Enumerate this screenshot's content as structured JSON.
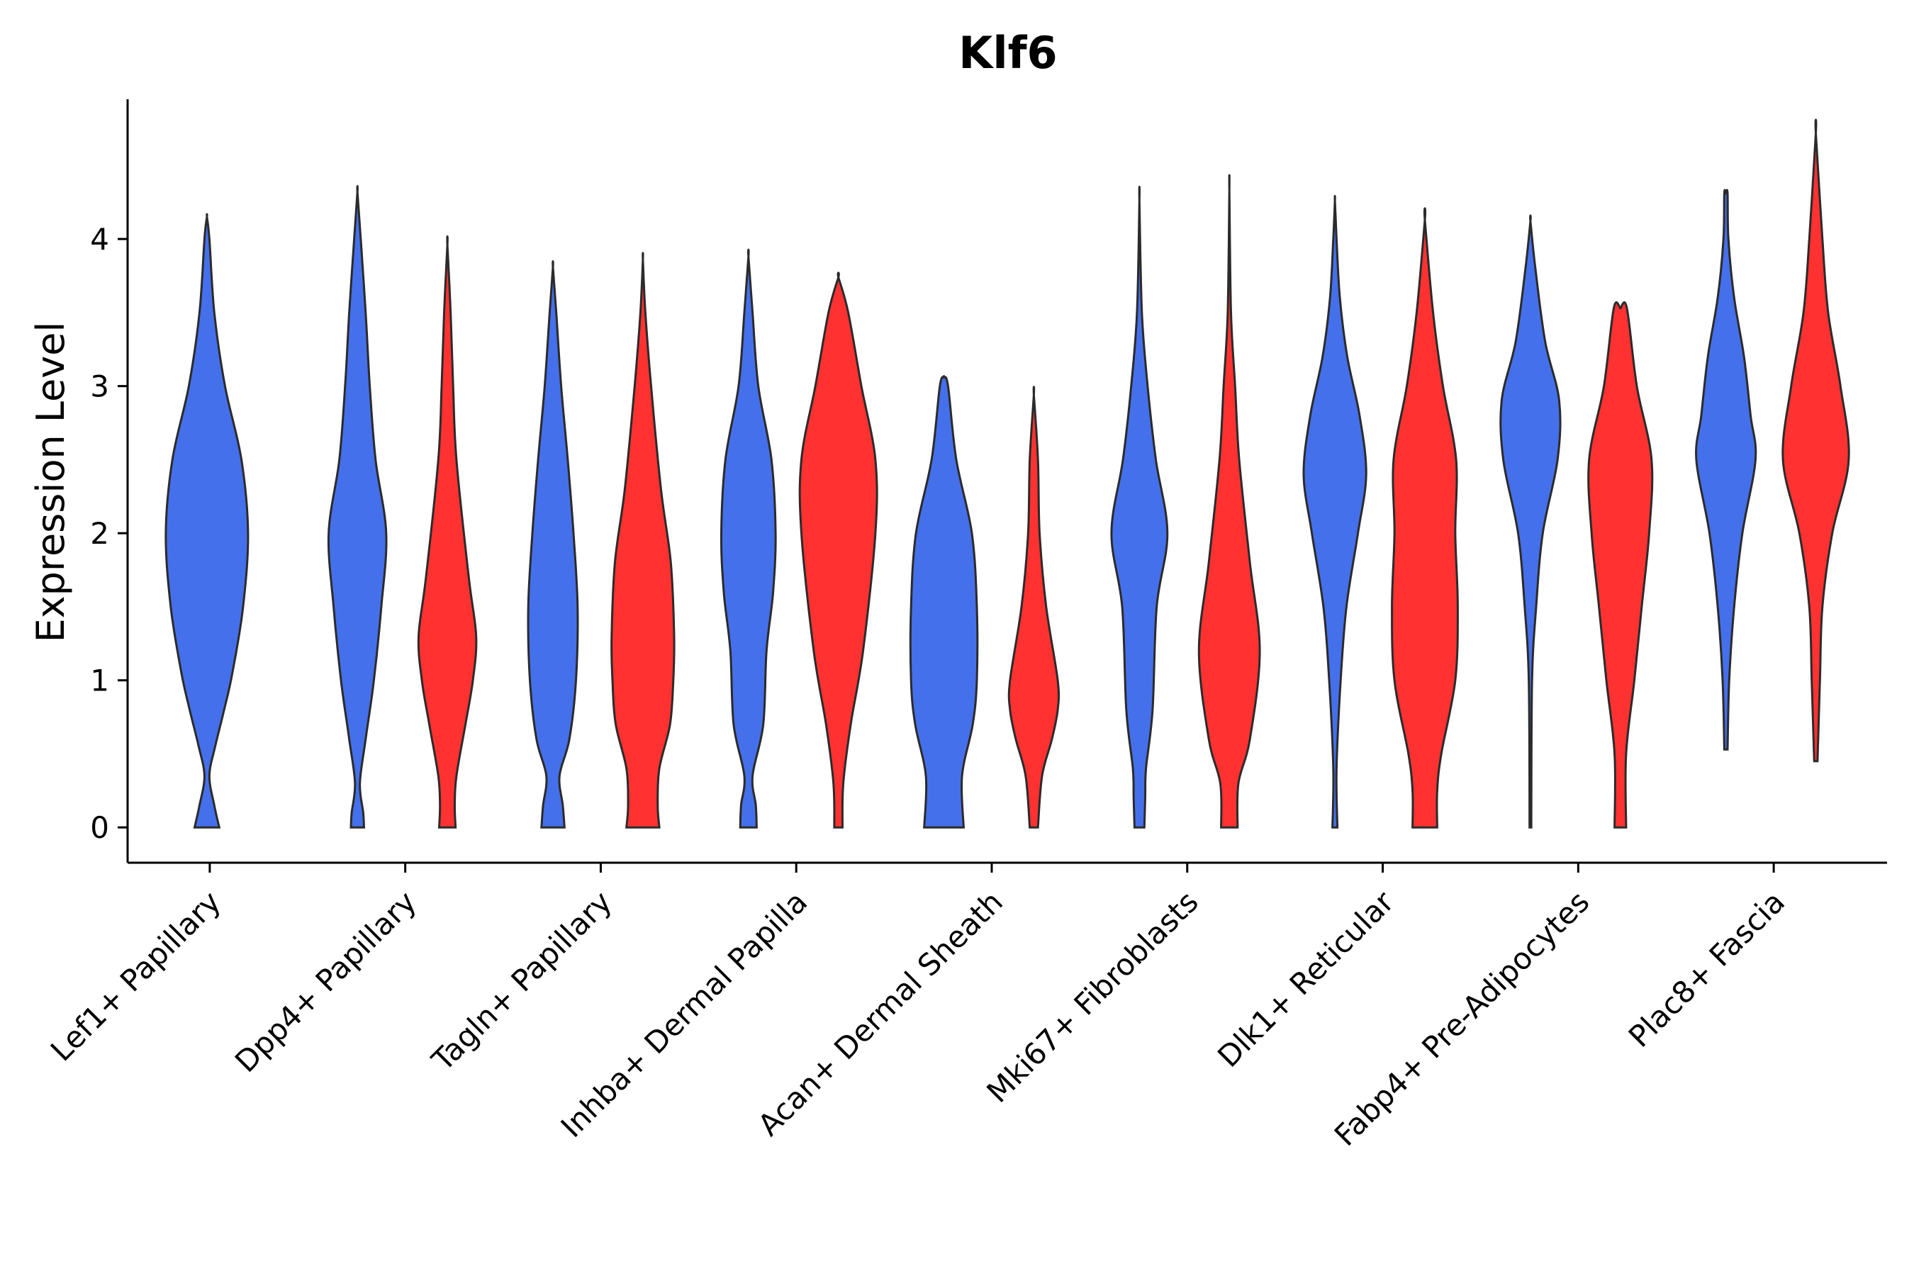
{
  "chart_data": {
    "type": "violin",
    "title": "Klf6",
    "xlabel": "",
    "ylabel": "Expression Level",
    "ylim": [
      -0.24,
      4.95
    ],
    "yticks": [
      0,
      1,
      2,
      3,
      4
    ],
    "grid": false,
    "legend": "none",
    "categories": [
      "Lef1+ Papillary",
      "Dpp4+ Papillary",
      "Tagln+ Papillary",
      "Inhba+ Dermal Papilla",
      "Acan+ Dermal Sheath",
      "Mki67+ Fibroblasts",
      "Dlk1+ Reticular",
      "Fabp4+ Pre-Adipocytes",
      "Plac8+ Fascia"
    ],
    "colors": {
      "blue": "#4570eb",
      "red": "#ff3131"
    },
    "violins": [
      {
        "category": 0,
        "color": "blue",
        "offset": 0.0,
        "profile": [
          [
            0,
            0.15
          ],
          [
            0.15,
            0.09
          ],
          [
            0.35,
            0.03
          ],
          [
            0.55,
            0.1
          ],
          [
            0.8,
            0.21
          ],
          [
            1.05,
            0.31
          ],
          [
            1.5,
            0.44
          ],
          [
            2.0,
            0.5
          ],
          [
            2.5,
            0.42
          ],
          [
            3.0,
            0.22
          ],
          [
            3.5,
            0.09
          ],
          [
            4.0,
            0.03
          ],
          [
            4.15,
            0
          ]
        ]
      },
      {
        "category": 1,
        "color": "blue",
        "offset": -0.23,
        "profile": [
          [
            0,
            0.08
          ],
          [
            0.1,
            0.07
          ],
          [
            0.3,
            0.03
          ],
          [
            0.6,
            0.1
          ],
          [
            1.0,
            0.2
          ],
          [
            1.5,
            0.29
          ],
          [
            2.0,
            0.35
          ],
          [
            2.5,
            0.22
          ],
          [
            3.0,
            0.15
          ],
          [
            3.5,
            0.1
          ],
          [
            4.0,
            0.04
          ],
          [
            4.32,
            0
          ]
        ]
      },
      {
        "category": 1,
        "color": "red",
        "offset": 0.23,
        "profile": [
          [
            0,
            0.1
          ],
          [
            0.15,
            0.09
          ],
          [
            0.35,
            0.11
          ],
          [
            0.7,
            0.22
          ],
          [
            1.0,
            0.31
          ],
          [
            1.3,
            0.35
          ],
          [
            1.7,
            0.26
          ],
          [
            2.5,
            0.11
          ],
          [
            3.0,
            0.07
          ],
          [
            3.5,
            0.04
          ],
          [
            3.96,
            0
          ]
        ]
      },
      {
        "category": 2,
        "color": "blue",
        "offset": -0.23,
        "profile": [
          [
            0,
            0.14
          ],
          [
            0.15,
            0.12
          ],
          [
            0.35,
            0.08
          ],
          [
            0.6,
            0.2
          ],
          [
            1.0,
            0.28
          ],
          [
            1.5,
            0.3
          ],
          [
            2.0,
            0.25
          ],
          [
            2.5,
            0.18
          ],
          [
            3.0,
            0.1
          ],
          [
            3.5,
            0.04
          ],
          [
            3.81,
            0
          ]
        ]
      },
      {
        "category": 2,
        "color": "red",
        "offset": 0.23,
        "profile": [
          [
            0,
            0.2
          ],
          [
            0.15,
            0.18
          ],
          [
            0.4,
            0.2
          ],
          [
            0.7,
            0.33
          ],
          [
            1.0,
            0.37
          ],
          [
            1.3,
            0.38
          ],
          [
            1.8,
            0.34
          ],
          [
            2.3,
            0.22
          ],
          [
            3.0,
            0.1
          ],
          [
            3.5,
            0.03
          ],
          [
            3.86,
            0
          ]
        ]
      },
      {
        "category": 3,
        "color": "blue",
        "offset": -0.23,
        "profile": [
          [
            0,
            0.1
          ],
          [
            0.15,
            0.09
          ],
          [
            0.35,
            0.05
          ],
          [
            0.7,
            0.18
          ],
          [
            1.2,
            0.22
          ],
          [
            1.6,
            0.3
          ],
          [
            2.0,
            0.33
          ],
          [
            2.5,
            0.28
          ],
          [
            3.0,
            0.12
          ],
          [
            3.5,
            0.05
          ],
          [
            3.88,
            0
          ]
        ]
      },
      {
        "category": 3,
        "color": "red",
        "offset": 0.23,
        "profile": [
          [
            0,
            0.05
          ],
          [
            0.3,
            0.06
          ],
          [
            0.7,
            0.15
          ],
          [
            1.2,
            0.3
          ],
          [
            2.0,
            0.45
          ],
          [
            2.5,
            0.45
          ],
          [
            3.0,
            0.28
          ],
          [
            3.5,
            0.12
          ],
          [
            3.74,
            0
          ]
        ]
      },
      {
        "category": 4,
        "color": "blue",
        "offset": -0.23,
        "profile": [
          [
            0,
            0.24
          ],
          [
            0.35,
            0.22
          ],
          [
            0.7,
            0.35
          ],
          [
            1.0,
            0.4
          ],
          [
            1.5,
            0.4
          ],
          [
            2.0,
            0.34
          ],
          [
            2.5,
            0.15
          ],
          [
            3.0,
            0.05
          ],
          [
            3.06,
            0
          ]
        ]
      },
      {
        "category": 4,
        "color": "red",
        "offset": 0.23,
        "profile": [
          [
            0,
            0.05
          ],
          [
            0.35,
            0.1
          ],
          [
            0.6,
            0.22
          ],
          [
            0.8,
            0.29
          ],
          [
            1.0,
            0.29
          ],
          [
            1.5,
            0.15
          ],
          [
            2.0,
            0.07
          ],
          [
            2.5,
            0.05
          ],
          [
            2.94,
            0
          ]
        ]
      },
      {
        "category": 5,
        "color": "blue",
        "offset": -0.23,
        "profile": [
          [
            0,
            0.06
          ],
          [
            0.2,
            0.07
          ],
          [
            0.4,
            0.08
          ],
          [
            0.8,
            0.16
          ],
          [
            1.5,
            0.21
          ],
          [
            2.0,
            0.34
          ],
          [
            2.5,
            0.2
          ],
          [
            3.0,
            0.1
          ],
          [
            3.5,
            0.03
          ],
          [
            4.26,
            0
          ]
        ]
      },
      {
        "category": 5,
        "color": "red",
        "offset": 0.23,
        "profile": [
          [
            0,
            0.1
          ],
          [
            0.3,
            0.11
          ],
          [
            0.6,
            0.25
          ],
          [
            1.2,
            0.37
          ],
          [
            1.8,
            0.25
          ],
          [
            2.5,
            0.12
          ],
          [
            3.0,
            0.07
          ],
          [
            3.5,
            0.02
          ],
          [
            4.33,
            0
          ]
        ]
      },
      {
        "category": 6,
        "color": "blue",
        "offset": -0.23,
        "profile": [
          [
            0,
            0.03
          ],
          [
            0.4,
            0.02
          ],
          [
            1.0,
            0.07
          ],
          [
            1.5,
            0.14
          ],
          [
            2.0,
            0.28
          ],
          [
            2.4,
            0.38
          ],
          [
            2.8,
            0.3
          ],
          [
            3.2,
            0.15
          ],
          [
            3.6,
            0.06
          ],
          [
            4.0,
            0.02
          ],
          [
            4.26,
            0
          ]
        ]
      },
      {
        "category": 6,
        "color": "red",
        "offset": 0.23,
        "profile": [
          [
            0,
            0.15
          ],
          [
            0.25,
            0.15
          ],
          [
            0.5,
            0.2
          ],
          [
            1.0,
            0.37
          ],
          [
            1.5,
            0.4
          ],
          [
            2.0,
            0.37
          ],
          [
            2.5,
            0.38
          ],
          [
            3.0,
            0.22
          ],
          [
            3.5,
            0.1
          ],
          [
            4.13,
            0
          ]
        ]
      },
      {
        "category": 7,
        "color": "blue",
        "offset": -0.23,
        "profile": [
          [
            0,
            0.01
          ],
          [
            1.0,
            0.02
          ],
          [
            1.5,
            0.07
          ],
          [
            2.0,
            0.15
          ],
          [
            2.5,
            0.33
          ],
          [
            2.9,
            0.35
          ],
          [
            3.3,
            0.18
          ],
          [
            3.8,
            0.06
          ],
          [
            4.12,
            0
          ]
        ]
      },
      {
        "category": 7,
        "color": "red",
        "offset": 0.23,
        "profile": [
          [
            0,
            0.07
          ],
          [
            0.5,
            0.07
          ],
          [
            1.0,
            0.17
          ],
          [
            1.5,
            0.26
          ],
          [
            2.0,
            0.35
          ],
          [
            2.5,
            0.38
          ],
          [
            3.0,
            0.2
          ],
          [
            3.53,
            0.08
          ],
          [
            3.53,
            0
          ]
        ]
      },
      {
        "category": 8,
        "color": "blue",
        "offset": -0.23,
        "profile": [
          [
            0.53,
            0.02
          ],
          [
            1.0,
            0.04
          ],
          [
            1.5,
            0.1
          ],
          [
            2.0,
            0.2
          ],
          [
            2.5,
            0.36
          ],
          [
            2.8,
            0.3
          ],
          [
            3.2,
            0.22
          ],
          [
            3.6,
            0.1
          ],
          [
            4.0,
            0.03
          ],
          [
            4.31,
            0.02
          ],
          [
            4.31,
            0
          ]
        ]
      },
      {
        "category": 8,
        "color": "red",
        "offset": 0.23,
        "profile": [
          [
            0.45,
            0.02
          ],
          [
            1.0,
            0.05
          ],
          [
            1.5,
            0.08
          ],
          [
            2.0,
            0.2
          ],
          [
            2.5,
            0.4
          ],
          [
            3.0,
            0.3
          ],
          [
            3.5,
            0.15
          ],
          [
            4.0,
            0.08
          ],
          [
            4.72,
            0
          ]
        ]
      }
    ]
  }
}
